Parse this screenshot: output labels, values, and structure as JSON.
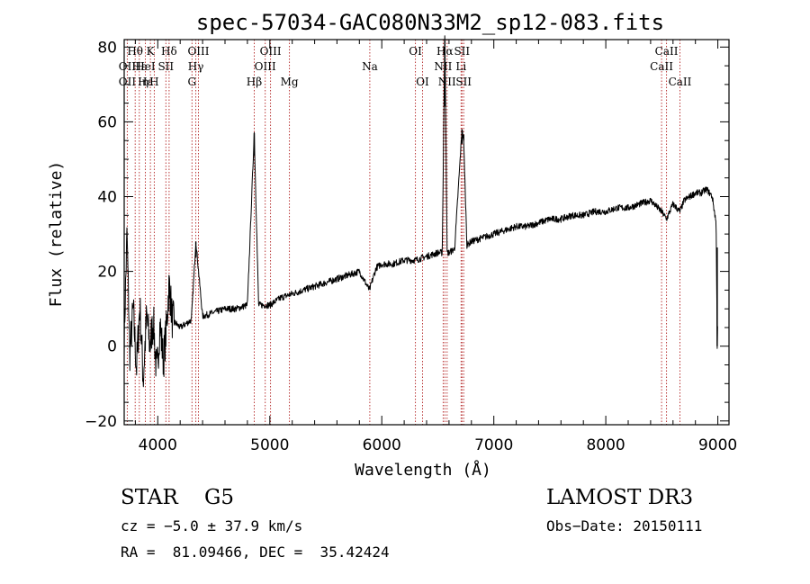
{
  "chart_data": {
    "type": "line",
    "title": "spec-57034-GAC080N33M2_sp12-083.fits",
    "xlabel": "Wavelength (Å)",
    "ylabel": "Flux (relative)",
    "xlim": [
      3700,
      9100
    ],
    "ylim": [
      -21,
      82
    ],
    "xticks": [
      4000,
      5000,
      6000,
      7000,
      8000,
      9000
    ],
    "xtick_labels": [
      "4000",
      "5000",
      "6000",
      "7000",
      "8000",
      "9000"
    ],
    "yticks": [
      -20,
      0,
      20,
      40,
      60,
      80
    ],
    "ytick_labels": [
      "−20",
      "0",
      "20",
      "40",
      "60",
      "80"
    ],
    "spectrum": {
      "x": [
        3700,
        3725,
        3750,
        3780,
        3810,
        3840,
        3870,
        3900,
        3930,
        3960,
        3990,
        4020,
        4050,
        4080,
        4101,
        4130,
        4200,
        4250,
        4300,
        4340,
        4400,
        4500,
        4600,
        4700,
        4800,
        4861,
        4900,
        5000,
        5100,
        5200,
        5300,
        5400,
        5500,
        5600,
        5700,
        5800,
        5890,
        5950,
        6000,
        6100,
        6200,
        6300,
        6400,
        6500,
        6540,
        6563,
        6583,
        6600,
        6650,
        6716,
        6731,
        6760,
        6800,
        6900,
        7000,
        7100,
        7200,
        7300,
        7400,
        7500,
        7600,
        7700,
        7800,
        7900,
        8000,
        8100,
        8200,
        8300,
        8400,
        8498,
        8542,
        8600,
        8662,
        8700,
        8750,
        8800,
        8850,
        8900,
        8950,
        8985,
        8995,
        9000
      ],
      "y": [
        2,
        30,
        -2,
        10,
        -6,
        11,
        -9,
        8,
        0,
        7,
        -8,
        6,
        -4,
        6,
        17,
        7,
        5,
        6,
        7,
        28,
        8,
        9,
        10,
        10,
        11,
        57,
        11,
        11,
        13,
        14,
        15,
        16,
        17,
        18,
        19,
        20,
        15,
        21,
        22,
        22,
        23,
        23,
        24,
        25,
        25,
        85,
        25,
        25,
        26,
        58,
        55,
        27,
        28,
        29,
        30,
        31,
        32,
        32,
        33,
        34,
        34,
        35,
        35,
        36,
        36,
        37,
        37,
        38,
        39,
        36,
        34,
        38,
        36,
        39,
        40,
        41,
        41,
        42,
        40,
        33,
        0,
        9
      ]
    },
    "lines": [
      {
        "label": "Hθ",
        "x": 3798,
        "row": 0
      },
      {
        "label": "OII",
        "x": 3727,
        "row": 1
      },
      {
        "label": "OII",
        "x": 3727,
        "row": 2
      },
      {
        "label": "Hε",
        "x": 3835,
        "row": 1
      },
      {
        "label": "Hε",
        "x": 3889,
        "row": 2
      },
      {
        "label": "K",
        "x": 3934,
        "row": 0
      },
      {
        "label": "HeI",
        "x": 3889,
        "row": 1
      },
      {
        "label": "η",
        "x": 3889,
        "row": 2
      },
      {
        "label": "H",
        "x": 3968,
        "row": 2
      },
      {
        "label": "SII",
        "x": 4072,
        "row": 1
      },
      {
        "label": "Hδ",
        "x": 4101,
        "row": 0
      },
      {
        "label": "OIII",
        "x": 4363,
        "row": 0
      },
      {
        "label": "Hγ",
        "x": 4340,
        "row": 1
      },
      {
        "label": "G",
        "x": 4305,
        "row": 2
      },
      {
        "label": "Hβ",
        "x": 4861,
        "row": 2
      },
      {
        "label": "OIII",
        "x": 5007,
        "row": 0
      },
      {
        "label": "OIII",
        "x": 4959,
        "row": 1
      },
      {
        "label": "Mg",
        "x": 5175,
        "row": 2
      },
      {
        "label": "Na",
        "x": 5893,
        "row": 1
      },
      {
        "label": "OI",
        "x": 6300,
        "row": 0
      },
      {
        "label": "OI",
        "x": 6364,
        "row": 2
      },
      {
        "label": "Hα",
        "x": 6563,
        "row": 0
      },
      {
        "label": "NII",
        "x": 6548,
        "row": 1
      },
      {
        "label": "NII",
        "x": 6583,
        "row": 2
      },
      {
        "label": "SII",
        "x": 6716,
        "row": 0
      },
      {
        "label": "Li",
        "x": 6708,
        "row": 1
      },
      {
        "label": "SII",
        "x": 6731,
        "row": 2
      },
      {
        "label": "CaII",
        "x": 8542,
        "row": 0
      },
      {
        "label": "CaII",
        "x": 8498,
        "row": 1
      },
      {
        "label": "CaII",
        "x": 8662,
        "row": 2
      }
    ]
  },
  "info": {
    "class_line": "STAR    G5",
    "survey": "LAMOST DR3",
    "cz": "cz = −5.0 ± 37.9 km/s",
    "obs_date": "Obs−Date: 20150111",
    "coords": "RA =  81.09466, DEC =  35.42424"
  },
  "colors": {
    "spectrum": "#000000",
    "line_markers": "#b22222",
    "axes": "#000000"
  }
}
